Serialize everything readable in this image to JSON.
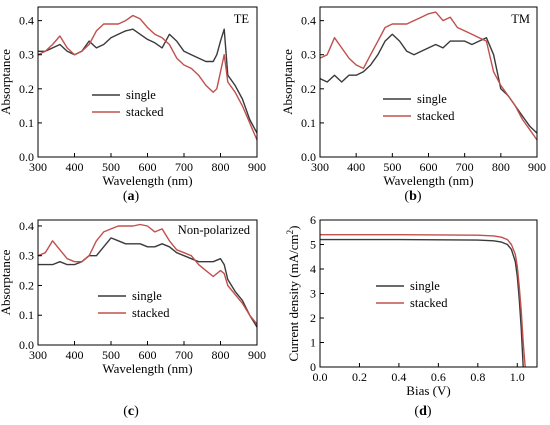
{
  "colors": {
    "single": "#3a3a3a",
    "stacked": "#c0504d"
  },
  "chart_data": [
    {
      "panel_label": "(a)",
      "type": "line",
      "annotation": "TE",
      "xlabel": "Wavelength (nm)",
      "ylabel": "Absorptance",
      "xlim": [
        300,
        900
      ],
      "ylim": [
        0,
        0.44
      ],
      "xticks": [
        300,
        400,
        500,
        600,
        700,
        800,
        900
      ],
      "yticks": [
        0.0,
        0.1,
        0.2,
        0.3,
        0.4
      ],
      "legend_position": "center-left",
      "series": [
        {
          "name": "single",
          "x": [
            300,
            320,
            340,
            360,
            380,
            400,
            420,
            440,
            460,
            480,
            500,
            520,
            540,
            560,
            580,
            600,
            620,
            640,
            660,
            680,
            700,
            720,
            740,
            760,
            780,
            790,
            800,
            810,
            820,
            840,
            860,
            880,
            900
          ],
          "y": [
            0.31,
            0.31,
            0.32,
            0.33,
            0.31,
            0.3,
            0.31,
            0.34,
            0.32,
            0.33,
            0.35,
            0.36,
            0.37,
            0.375,
            0.36,
            0.345,
            0.335,
            0.32,
            0.36,
            0.34,
            0.31,
            0.3,
            0.29,
            0.28,
            0.28,
            0.3,
            0.34,
            0.375,
            0.24,
            0.21,
            0.17,
            0.11,
            0.07
          ]
        },
        {
          "name": "stacked",
          "x": [
            300,
            320,
            340,
            360,
            380,
            400,
            420,
            440,
            460,
            480,
            500,
            520,
            540,
            560,
            580,
            600,
            620,
            640,
            660,
            680,
            700,
            720,
            740,
            760,
            780,
            790,
            800,
            810,
            820,
            840,
            860,
            880,
            900
          ],
          "y": [
            0.3,
            0.31,
            0.33,
            0.355,
            0.32,
            0.3,
            0.31,
            0.33,
            0.37,
            0.39,
            0.39,
            0.39,
            0.4,
            0.415,
            0.405,
            0.38,
            0.36,
            0.35,
            0.33,
            0.29,
            0.27,
            0.26,
            0.24,
            0.21,
            0.19,
            0.2,
            0.25,
            0.3,
            0.22,
            0.19,
            0.15,
            0.1,
            0.05
          ]
        }
      ]
    },
    {
      "panel_label": "(b)",
      "type": "line",
      "annotation": "TM",
      "xlabel": "Wavelength (nm)",
      "ylabel": "Absorptance",
      "xlim": [
        300,
        900
      ],
      "ylim": [
        0,
        0.44
      ],
      "xticks": [
        300,
        400,
        500,
        600,
        700,
        800,
        900
      ],
      "yticks": [
        0.0,
        0.1,
        0.2,
        0.3,
        0.4
      ],
      "legend_position": "center-right",
      "series": [
        {
          "name": "single",
          "x": [
            300,
            320,
            340,
            360,
            380,
            400,
            420,
            440,
            460,
            480,
            500,
            520,
            540,
            560,
            580,
            600,
            620,
            640,
            660,
            680,
            700,
            720,
            740,
            760,
            780,
            800,
            820,
            840,
            860,
            880,
            900
          ],
          "y": [
            0.23,
            0.22,
            0.24,
            0.22,
            0.24,
            0.24,
            0.25,
            0.27,
            0.3,
            0.34,
            0.36,
            0.34,
            0.31,
            0.3,
            0.31,
            0.32,
            0.33,
            0.32,
            0.34,
            0.34,
            0.34,
            0.33,
            0.34,
            0.35,
            0.3,
            0.2,
            0.18,
            0.15,
            0.12,
            0.09,
            0.07
          ]
        },
        {
          "name": "stacked",
          "x": [
            300,
            320,
            340,
            360,
            380,
            400,
            420,
            440,
            460,
            480,
            500,
            520,
            540,
            560,
            580,
            600,
            620,
            640,
            660,
            680,
            700,
            720,
            740,
            760,
            780,
            800,
            820,
            840,
            860,
            880,
            900
          ],
          "y": [
            0.29,
            0.3,
            0.35,
            0.32,
            0.29,
            0.27,
            0.26,
            0.3,
            0.34,
            0.38,
            0.39,
            0.39,
            0.39,
            0.4,
            0.41,
            0.42,
            0.425,
            0.4,
            0.41,
            0.38,
            0.37,
            0.36,
            0.35,
            0.34,
            0.25,
            0.21,
            0.18,
            0.15,
            0.11,
            0.08,
            0.05
          ]
        }
      ]
    },
    {
      "panel_label": "(c)",
      "type": "line",
      "annotation": "Non-polarized",
      "xlabel": "Wavelength (nm)",
      "ylabel": "Absorptance",
      "xlim": [
        300,
        900
      ],
      "ylim": [
        0,
        0.42
      ],
      "xticks": [
        300,
        400,
        500,
        600,
        700,
        800,
        900
      ],
      "yticks": [
        0.0,
        0.1,
        0.2,
        0.3,
        0.4
      ],
      "legend_position": "center-left",
      "series": [
        {
          "name": "single",
          "x": [
            300,
            320,
            340,
            360,
            380,
            400,
            420,
            440,
            460,
            480,
            500,
            520,
            540,
            560,
            580,
            600,
            620,
            640,
            660,
            680,
            700,
            720,
            740,
            760,
            780,
            800,
            810,
            820,
            840,
            860,
            880,
            900
          ],
          "y": [
            0.27,
            0.27,
            0.27,
            0.28,
            0.27,
            0.27,
            0.28,
            0.3,
            0.3,
            0.33,
            0.36,
            0.35,
            0.34,
            0.34,
            0.34,
            0.33,
            0.33,
            0.34,
            0.33,
            0.31,
            0.3,
            0.29,
            0.28,
            0.28,
            0.28,
            0.29,
            0.27,
            0.22,
            0.18,
            0.15,
            0.1,
            0.06
          ]
        },
        {
          "name": "stacked",
          "x": [
            300,
            320,
            340,
            360,
            380,
            400,
            420,
            440,
            460,
            480,
            500,
            520,
            540,
            560,
            580,
            600,
            620,
            640,
            660,
            680,
            700,
            720,
            740,
            760,
            780,
            800,
            810,
            820,
            840,
            860,
            880,
            900
          ],
          "y": [
            0.3,
            0.31,
            0.35,
            0.32,
            0.29,
            0.28,
            0.28,
            0.3,
            0.35,
            0.38,
            0.39,
            0.4,
            0.4,
            0.4,
            0.405,
            0.4,
            0.38,
            0.39,
            0.35,
            0.32,
            0.31,
            0.3,
            0.27,
            0.25,
            0.23,
            0.25,
            0.24,
            0.2,
            0.17,
            0.14,
            0.1,
            0.07
          ]
        }
      ]
    },
    {
      "panel_label": "(d)",
      "type": "line",
      "xlabel": "Bias (V)",
      "ylabel": "Current density (mA/cm²)",
      "ylabel_main": "Current density (mA/cm",
      "ylabel_sup": "2",
      "ylabel_tail": ")",
      "xlim": [
        0,
        1.1
      ],
      "ylim": [
        0,
        6
      ],
      "xticks": [
        0.0,
        0.2,
        0.4,
        0.6,
        0.8,
        1.0
      ],
      "yticks": [
        0,
        1,
        2,
        3,
        4,
        5,
        6
      ],
      "legend_position": "center",
      "series": [
        {
          "name": "single",
          "x": [
            0.0,
            0.2,
            0.4,
            0.6,
            0.8,
            0.88,
            0.92,
            0.95,
            0.97,
            0.99,
            1.0,
            1.01,
            1.02,
            1.03
          ],
          "y": [
            5.2,
            5.2,
            5.2,
            5.19,
            5.18,
            5.15,
            5.1,
            5.0,
            4.8,
            4.3,
            3.7,
            2.8,
            1.6,
            0.0
          ]
        },
        {
          "name": "stacked",
          "x": [
            0.0,
            0.2,
            0.4,
            0.6,
            0.8,
            0.88,
            0.92,
            0.95,
            0.97,
            0.99,
            1.0,
            1.01,
            1.02,
            1.03,
            1.04
          ],
          "y": [
            5.4,
            5.4,
            5.4,
            5.39,
            5.38,
            5.35,
            5.3,
            5.2,
            5.0,
            4.6,
            4.1,
            3.3,
            2.3,
            1.0,
            0.0
          ]
        }
      ]
    }
  ]
}
